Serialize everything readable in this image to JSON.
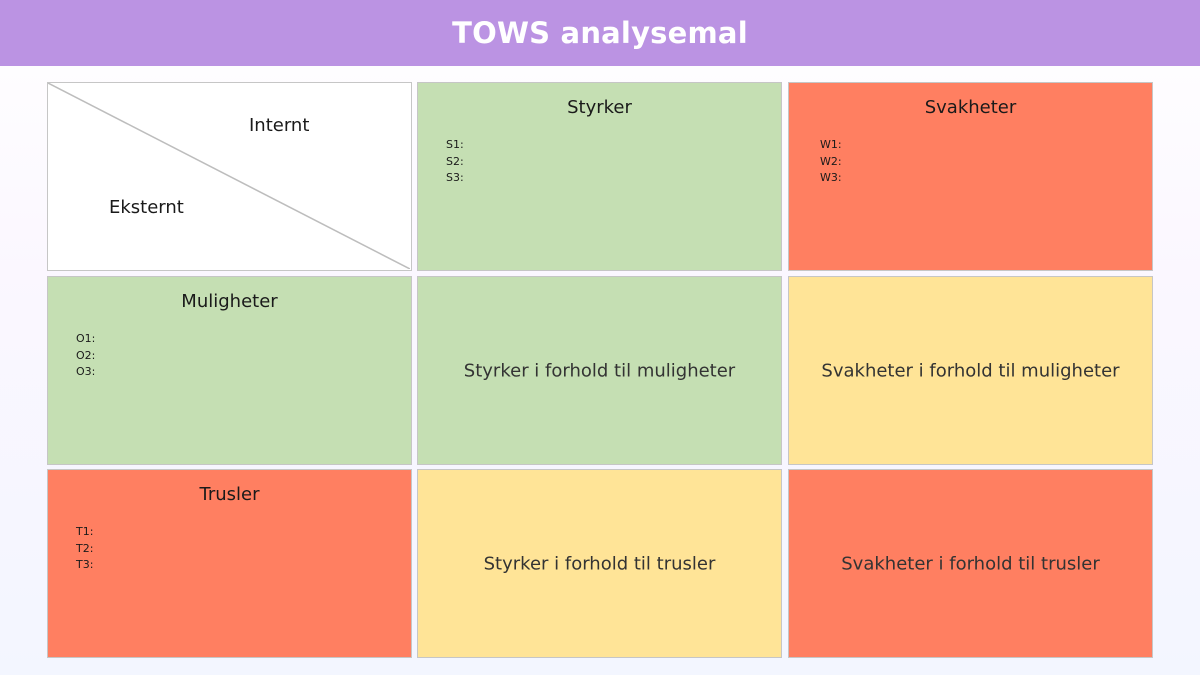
{
  "title": "TOWS analysemal",
  "corner": {
    "internal_label": "Internt",
    "external_label": "Eksternt"
  },
  "strengths": {
    "title": "Styrker",
    "items": [
      "S1:",
      "S2:",
      "S3:"
    ]
  },
  "weaknesses": {
    "title": "Svakheter",
    "items": [
      "W1:",
      "W2:",
      "W3:"
    ]
  },
  "opportunities": {
    "title": "Muligheter",
    "items": [
      "O1:",
      "O2:",
      "O3:"
    ]
  },
  "threats": {
    "title": "Trusler",
    "items": [
      "T1:",
      "T2:",
      "T3:"
    ]
  },
  "so": {
    "label": "Styrker i forhold til muligheter"
  },
  "wo": {
    "label": "Svakheter i forhold til muligheter"
  },
  "st": {
    "label": "Styrker i forhold til trusler"
  },
  "wt": {
    "label": "Svakheter i forhold til trusler"
  },
  "colors": {
    "header": "#bb93e3",
    "green": "#c5dfb3",
    "red": "#ff7f61",
    "yellow": "#ffe497"
  }
}
